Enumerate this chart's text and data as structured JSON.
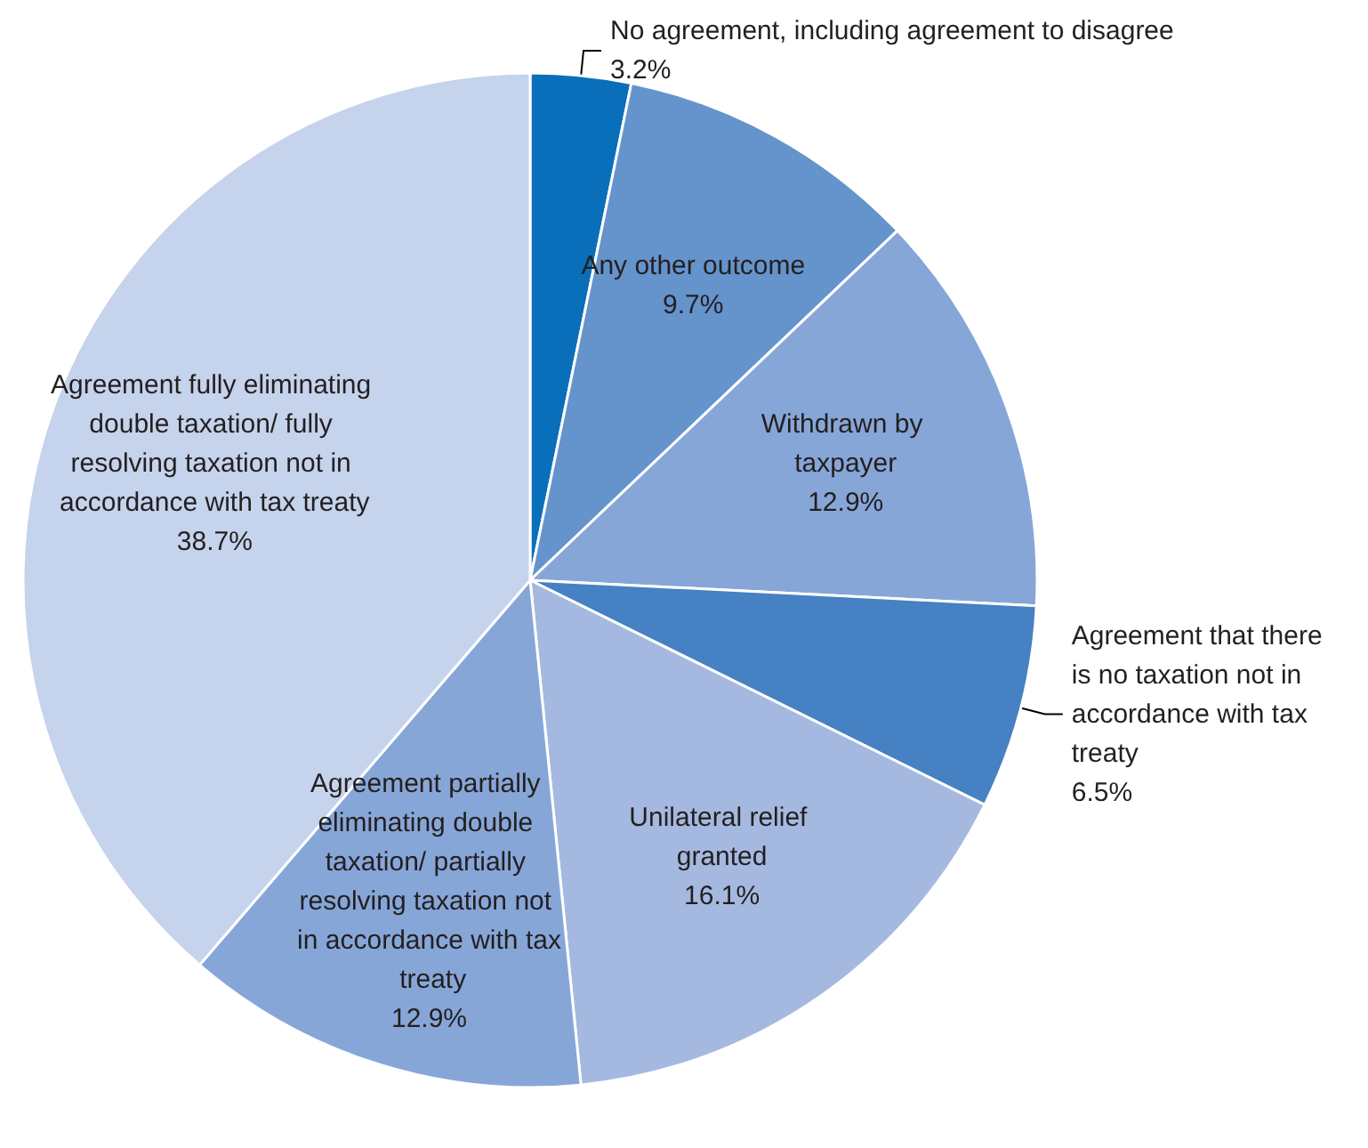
{
  "chart_data": {
    "type": "pie",
    "categories": [
      "No agreement, including agreement to disagree",
      "Any other outcome",
      "Withdrawn by taxpayer",
      "Agreement that there is no taxation not in accordance with tax treaty",
      "Unilateral relief granted",
      "Agreement partially eliminating double taxation/ partially resolving taxation not in accordance with tax treaty",
      "Agreement fully eliminating double taxation/ fully resolving taxation not in accordance with tax treaty"
    ],
    "values": [
      3.2,
      9.7,
      12.9,
      6.5,
      16.1,
      12.9,
      38.7
    ],
    "colors": [
      "#0a6fba",
      "#6593cc",
      "#87a6d8",
      "#4581c3",
      "#a5b9e0",
      "#87a6d8",
      "#c5d3ec"
    ],
    "value_labels": [
      "3.2%",
      "9.7%",
      "12.9%",
      "6.5%",
      "16.1%",
      "12.9%",
      "38.7%"
    ],
    "legend": false
  }
}
